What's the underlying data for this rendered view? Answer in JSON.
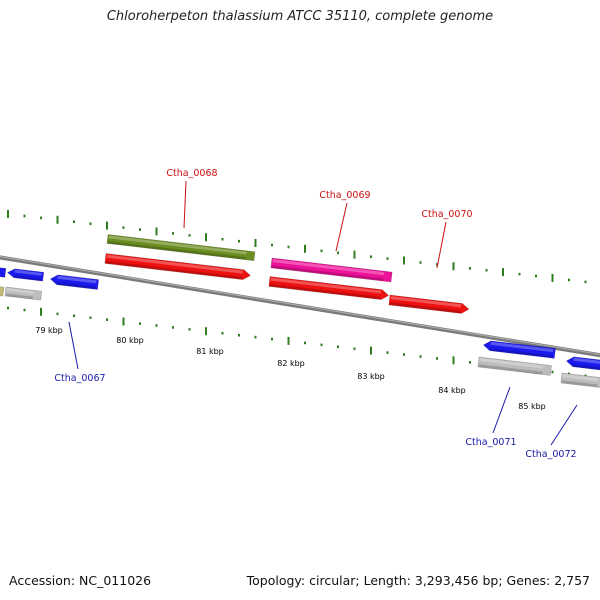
{
  "title": "Chloroherpeton thalassium ATCC 35110, complete genome",
  "footer": {
    "accession": "Accession: NC_011026",
    "stats": "Topology: circular; Length: 3,293,456 bp; Genes: 2,757"
  },
  "colors": {
    "backbone": "#7a7a7a",
    "tick": "#2f7d1f",
    "reverse_label": "#1a1aa8",
    "forward_label": "#cc1111",
    "blue_gene": "#1a1aee",
    "grey_gene": "#bdbdbd",
    "red_gene": "#ee1111",
    "olive_gene": "#6b8e23",
    "magenta_gene": "#ee1199",
    "tan_gene": "#c8b878"
  },
  "scale": {
    "unit": "kbp",
    "ticks": [
      "79 kbp",
      "80 kbp",
      "81 kbp",
      "82 kbp",
      "83 kbp",
      "84 kbp",
      "85 kbp"
    ]
  },
  "gene_labels": {
    "forward": [
      "Ctha_0068",
      "Ctha_0069",
      "Ctha_0070"
    ],
    "reverse": [
      "Ctha_0067",
      "Ctha_0071",
      "Ctha_0072"
    ]
  }
}
